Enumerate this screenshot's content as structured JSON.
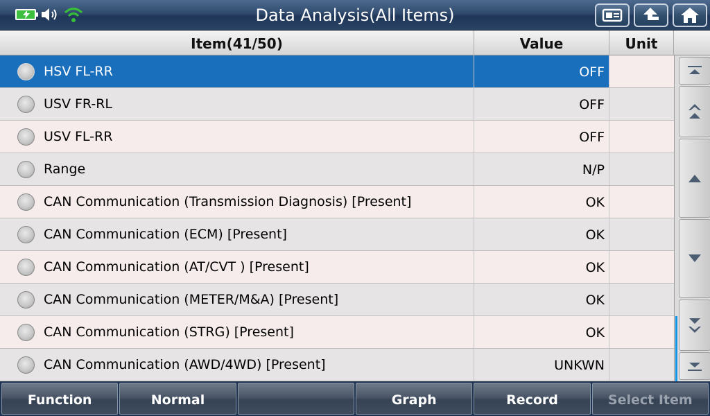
{
  "titlebar": {
    "title": "Data Analysis(All Items)",
    "status_icons": [
      "battery-icon",
      "speaker-icon",
      "wifi-icon"
    ],
    "buttons": [
      "screenshot-icon",
      "back-arrow-icon",
      "home-icon"
    ]
  },
  "table": {
    "headers": {
      "item": "Item(41/50)",
      "value": "Value",
      "unit": "Unit"
    },
    "selected_index": 0,
    "rows": [
      {
        "item": "HSV FL-RR",
        "value": "OFF",
        "unit": ""
      },
      {
        "item": "USV FR-RL",
        "value": "OFF",
        "unit": ""
      },
      {
        "item": "USV FL-RR",
        "value": "OFF",
        "unit": ""
      },
      {
        "item": "Range",
        "value": "N/P",
        "unit": ""
      },
      {
        "item": "CAN Communication (Transmission Diagnosis) [Present]",
        "value": "OK",
        "unit": ""
      },
      {
        "item": "CAN Communication (ECM) [Present]",
        "value": "OK",
        "unit": ""
      },
      {
        "item": "CAN Communication (AT/CVT ) [Present]",
        "value": "OK",
        "unit": ""
      },
      {
        "item": "CAN Communication (METER/M&A) [Present]",
        "value": "OK",
        "unit": ""
      },
      {
        "item": "CAN Communication (STRG) [Present]",
        "value": "OK",
        "unit": ""
      },
      {
        "item": "CAN Communication (AWD/4WD) [Present]",
        "value": "UNKWN",
        "unit": ""
      }
    ]
  },
  "scroll": {
    "buttons": [
      "scroll-top-icon",
      "page-up-icon",
      "line-up-icon",
      "line-down-icon",
      "page-down-icon",
      "scroll-bottom-icon"
    ]
  },
  "bottombar": {
    "function": "Function",
    "normal": "Normal",
    "blank": "",
    "graph": "Graph",
    "record": "Record",
    "select_item": "Select Item"
  },
  "colors": {
    "selected_row": "#1a6fbd",
    "titlebar": "#2f4a6d",
    "scroll_thumb": "#0f95e8"
  }
}
